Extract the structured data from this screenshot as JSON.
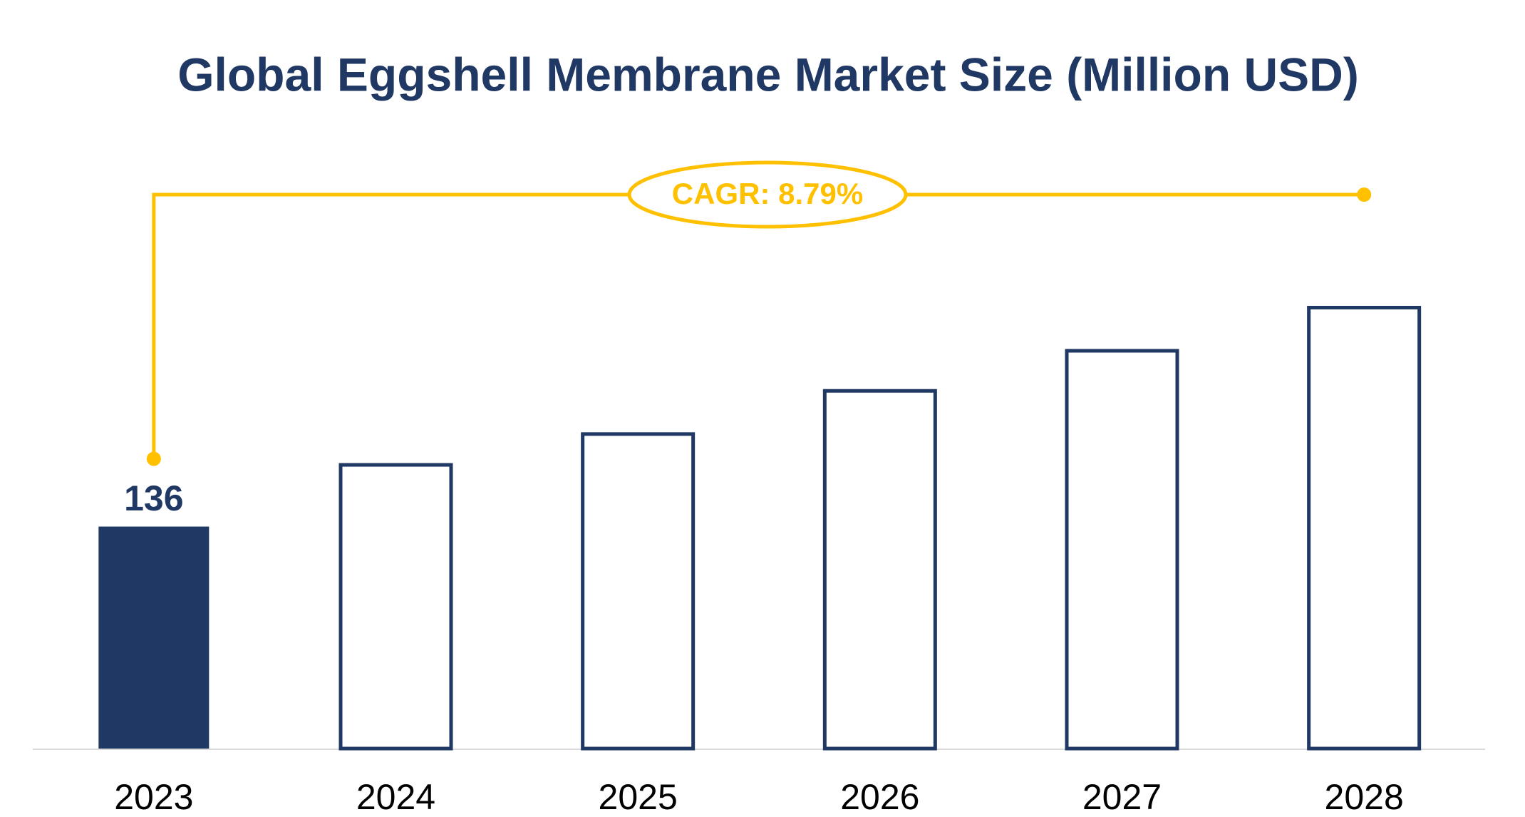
{
  "chart_data": {
    "type": "bar",
    "title": "Global Eggshell Membrane Market Size (Million USD)",
    "categories": [
      "2023",
      "2024",
      "2025",
      "2026",
      "2027",
      "2028"
    ],
    "values": [
      136,
      156,
      166,
      180,
      193,
      207
    ],
    "color": "#203864",
    "fill_colors": [
      "#203864",
      "#ffffff",
      "#ffffff",
      "#ffffff",
      "#ffffff",
      "#ffffff"
    ],
    "show_value_labels": [
      true,
      false,
      false,
      false,
      false,
      false
    ],
    "ylim": [
      64,
      250
    ],
    "grid": false,
    "annotation": {
      "text": "CAGR: 8.79%",
      "color": "#ffc000"
    }
  }
}
